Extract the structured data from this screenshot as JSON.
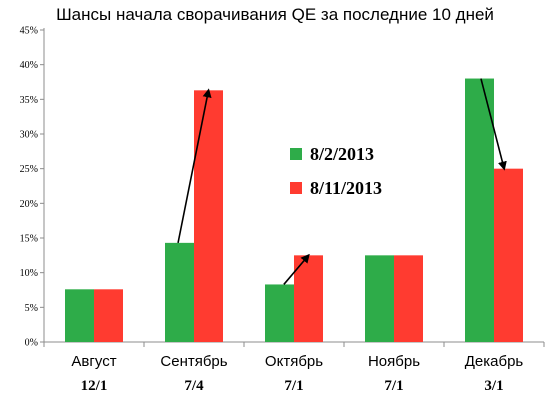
{
  "chart_data": {
    "type": "bar",
    "title": "Шансы начала сворачивания QE за последние 10 дней",
    "categories": [
      "Август",
      "Сентябрь",
      "Октябрь",
      "Ноябрь",
      "Декабрь"
    ],
    "category_sublabels": [
      "12/1",
      "7/4",
      "7/1",
      "7/1",
      "3/1"
    ],
    "series": [
      {
        "name": "8/2/2013",
        "color": "#2eac49",
        "values": [
          7.6,
          14.3,
          8.3,
          12.5,
          38.0
        ]
      },
      {
        "name": "8/11/2013",
        "color": "#ff3b30",
        "values": [
          7.6,
          36.3,
          12.5,
          12.5,
          25.0
        ]
      }
    ],
    "yticks": [
      "0%",
      "5%",
      "10%",
      "15%",
      "20%",
      "25%",
      "30%",
      "35%",
      "40%",
      "45%"
    ],
    "ylim": [
      0,
      45
    ],
    "grid": false,
    "legend_position": "center",
    "arrows": [
      {
        "category": "Сентябрь",
        "from": 14.3,
        "to": 36.3
      },
      {
        "category": "Октябрь",
        "from": 8.3,
        "to": 12.5
      },
      {
        "category": "Декабрь",
        "from": 38.0,
        "to": 25.0
      }
    ]
  }
}
